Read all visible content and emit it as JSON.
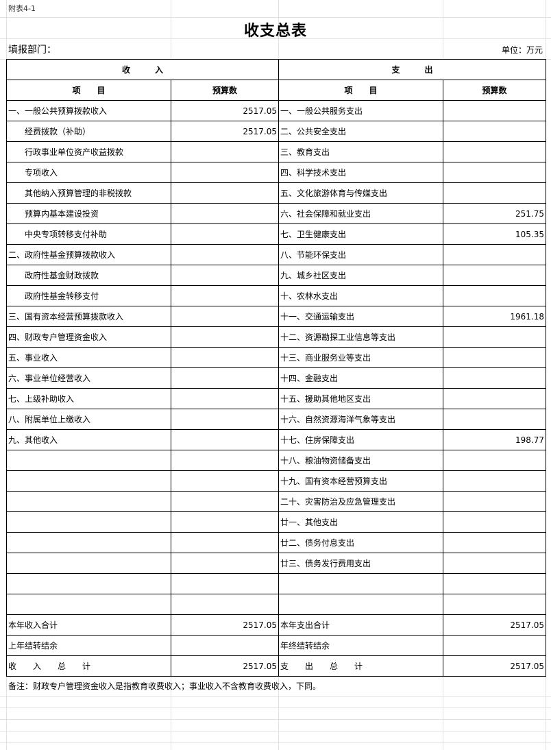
{
  "sheet_label": "附表4-1",
  "title": "收支总表",
  "dept_label": "填报部门：",
  "unit_label": "单位：万元",
  "header": {
    "income": "收　　　入",
    "expense": "支　　　出",
    "item": "项　　目",
    "budget": "预算数"
  },
  "rows": [
    {
      "in_item": "一、一般公共预算拨款收入",
      "in_indent": false,
      "in_val": "2517.05",
      "ex_item": "一、一般公共服务支出",
      "ex_val": ""
    },
    {
      "in_item": "经费拨款（补助）",
      "in_indent": true,
      "in_val": "2517.05",
      "ex_item": "二、公共安全支出",
      "ex_val": ""
    },
    {
      "in_item": "行政事业单位资产收益拨款",
      "in_indent": true,
      "in_val": "",
      "ex_item": "三、教育支出",
      "ex_val": ""
    },
    {
      "in_item": "专项收入",
      "in_indent": true,
      "in_val": "",
      "ex_item": "四、科学技术支出",
      "ex_val": ""
    },
    {
      "in_item": "其他纳入预算管理的非税拨款",
      "in_indent": true,
      "in_val": "",
      "ex_item": "五、文化旅游体育与传媒支出",
      "ex_val": ""
    },
    {
      "in_item": "预算内基本建设投资",
      "in_indent": true,
      "in_val": "",
      "ex_item": "六、社会保障和就业支出",
      "ex_val": "251.75"
    },
    {
      "in_item": "中央专项转移支付补助",
      "in_indent": true,
      "in_val": "",
      "ex_item": "七、卫生健康支出",
      "ex_val": "105.35"
    },
    {
      "in_item": "二、政府性基金预算拨款收入",
      "in_indent": false,
      "in_val": "",
      "ex_item": "八、节能环保支出",
      "ex_val": ""
    },
    {
      "in_item": "政府性基金财政拨款",
      "in_indent": true,
      "in_val": "",
      "ex_item": "九、城乡社区支出",
      "ex_val": ""
    },
    {
      "in_item": "政府性基金转移支付",
      "in_indent": true,
      "in_val": "",
      "ex_item": "十、农林水支出",
      "ex_val": ""
    },
    {
      "in_item": "三、国有资本经营预算拨款收入",
      "in_indent": false,
      "in_val": "",
      "ex_item": "十一、交通运输支出",
      "ex_val": "1961.18"
    },
    {
      "in_item": "四、财政专户管理资金收入",
      "in_indent": false,
      "in_val": "",
      "ex_item": "十二、资源勘探工业信息等支出",
      "ex_val": ""
    },
    {
      "in_item": "五、事业收入",
      "in_indent": false,
      "in_val": "",
      "ex_item": "十三、商业服务业等支出",
      "ex_val": ""
    },
    {
      "in_item": "六、事业单位经营收入",
      "in_indent": false,
      "in_val": "",
      "ex_item": "十四、金融支出",
      "ex_val": ""
    },
    {
      "in_item": "七、上级补助收入",
      "in_indent": false,
      "in_val": "",
      "ex_item": "十五、援助其他地区支出",
      "ex_val": ""
    },
    {
      "in_item": "八、附属单位上缴收入",
      "in_indent": false,
      "in_val": "",
      "ex_item": "十六、自然资源海洋气象等支出",
      "ex_val": ""
    },
    {
      "in_item": "九、其他收入",
      "in_indent": false,
      "in_val": "",
      "ex_item": "十七、住房保障支出",
      "ex_val": "198.77"
    },
    {
      "in_item": "",
      "in_indent": false,
      "in_val": "",
      "ex_item": "十八、粮油物资储备支出",
      "ex_val": ""
    },
    {
      "in_item": "",
      "in_indent": false,
      "in_val": "",
      "ex_item": "十九、国有资本经营预算支出",
      "ex_val": ""
    },
    {
      "in_item": "",
      "in_indent": false,
      "in_val": "",
      "ex_item": "二十、灾害防治及应急管理支出",
      "ex_val": ""
    },
    {
      "in_item": "",
      "in_indent": false,
      "in_val": "",
      "ex_item": "廿一、其他支出",
      "ex_val": ""
    },
    {
      "in_item": "",
      "in_indent": false,
      "in_val": "",
      "ex_item": "廿二、债务付息支出",
      "ex_val": ""
    },
    {
      "in_item": "",
      "in_indent": false,
      "in_val": "",
      "ex_item": "廿三、债务发行费用支出",
      "ex_val": ""
    },
    {
      "in_item": "",
      "in_indent": false,
      "in_val": "",
      "ex_item": "",
      "ex_val": ""
    },
    {
      "in_item": "",
      "in_indent": false,
      "in_val": "",
      "ex_item": "",
      "ex_val": ""
    },
    {
      "in_item": "本年收入合计",
      "in_indent": false,
      "in_val": "2517.05",
      "ex_item": "本年支出合计",
      "ex_val": "2517.05"
    },
    {
      "in_item": "上年结转结余",
      "in_indent": false,
      "in_val": "",
      "ex_item": "年终结转结余",
      "ex_val": ""
    },
    {
      "in_item": "收　　入　　总　　计",
      "in_indent": false,
      "in_val": "2517.05",
      "ex_item": "支　　出　　总　　计",
      "ex_val": "2517.05"
    }
  ],
  "note": "备注：财政专户管理资金收入是指教育收费收入；事业收入不含教育收费收入，下同。"
}
